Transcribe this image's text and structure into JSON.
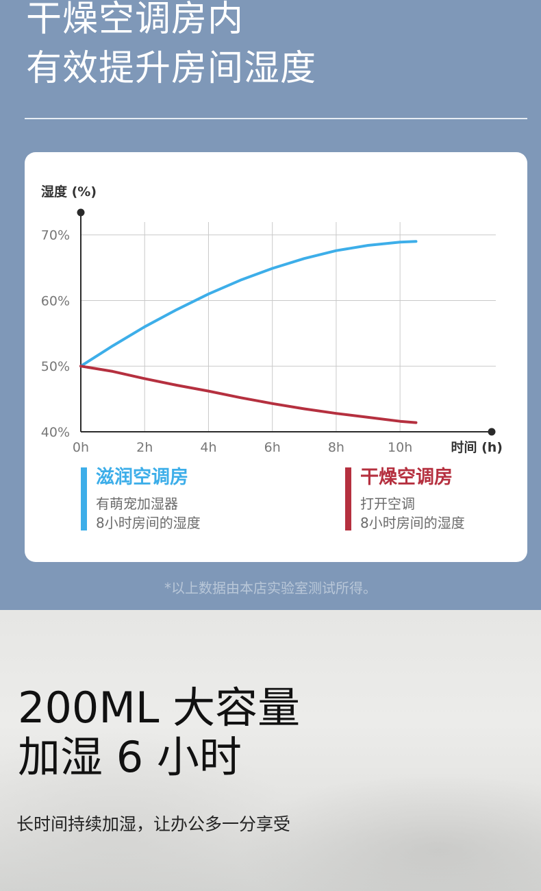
{
  "header": {
    "title_line1": "干燥空调房内",
    "title_line2": "有效提升房间湿度"
  },
  "chart_data": {
    "type": "line",
    "ylabel": "湿度 (%)",
    "xlabel": "时间 (h)",
    "x_ticks": [
      "0h",
      "2h",
      "4h",
      "6h",
      "8h",
      "10h"
    ],
    "y_ticks": [
      "40%",
      "50%",
      "60%",
      "70%"
    ],
    "xlim": [
      0,
      13
    ],
    "ylim": [
      40,
      73
    ],
    "grid": true,
    "series": [
      {
        "name": "滋润空调房",
        "color": "#3daee9",
        "x": [
          0,
          1,
          2,
          3,
          4,
          5,
          6,
          7,
          8,
          9,
          10,
          10.5
        ],
        "y": [
          50,
          53.1,
          56,
          58.6,
          61,
          63.1,
          64.9,
          66.4,
          67.6,
          68.4,
          68.9,
          69
        ]
      },
      {
        "name": "干燥空调房",
        "color": "#b5303f",
        "x": [
          0,
          1,
          2,
          3,
          4,
          5,
          6,
          7,
          8,
          9,
          10,
          10.5
        ],
        "y": [
          50,
          49.2,
          48.1,
          47.1,
          46.2,
          45.2,
          44.3,
          43.5,
          42.8,
          42.2,
          41.6,
          41.4
        ]
      }
    ]
  },
  "legend": {
    "moist": {
      "name": "滋润空调房",
      "line1": "有萌宠加湿器",
      "line2": "8小时房间的湿度",
      "color": "#3daee9"
    },
    "dry": {
      "name": "干燥空调房",
      "line1": "打开空调",
      "line2": "8小时房间的湿度",
      "color": "#b5303f"
    }
  },
  "footnote": "*以上数据由本店实验室测试所得。",
  "feature": {
    "line1": "200ML 大容量",
    "line2": "加湿 6 小时",
    "subtitle": "长时间持续加湿，让办公多一分享受"
  }
}
